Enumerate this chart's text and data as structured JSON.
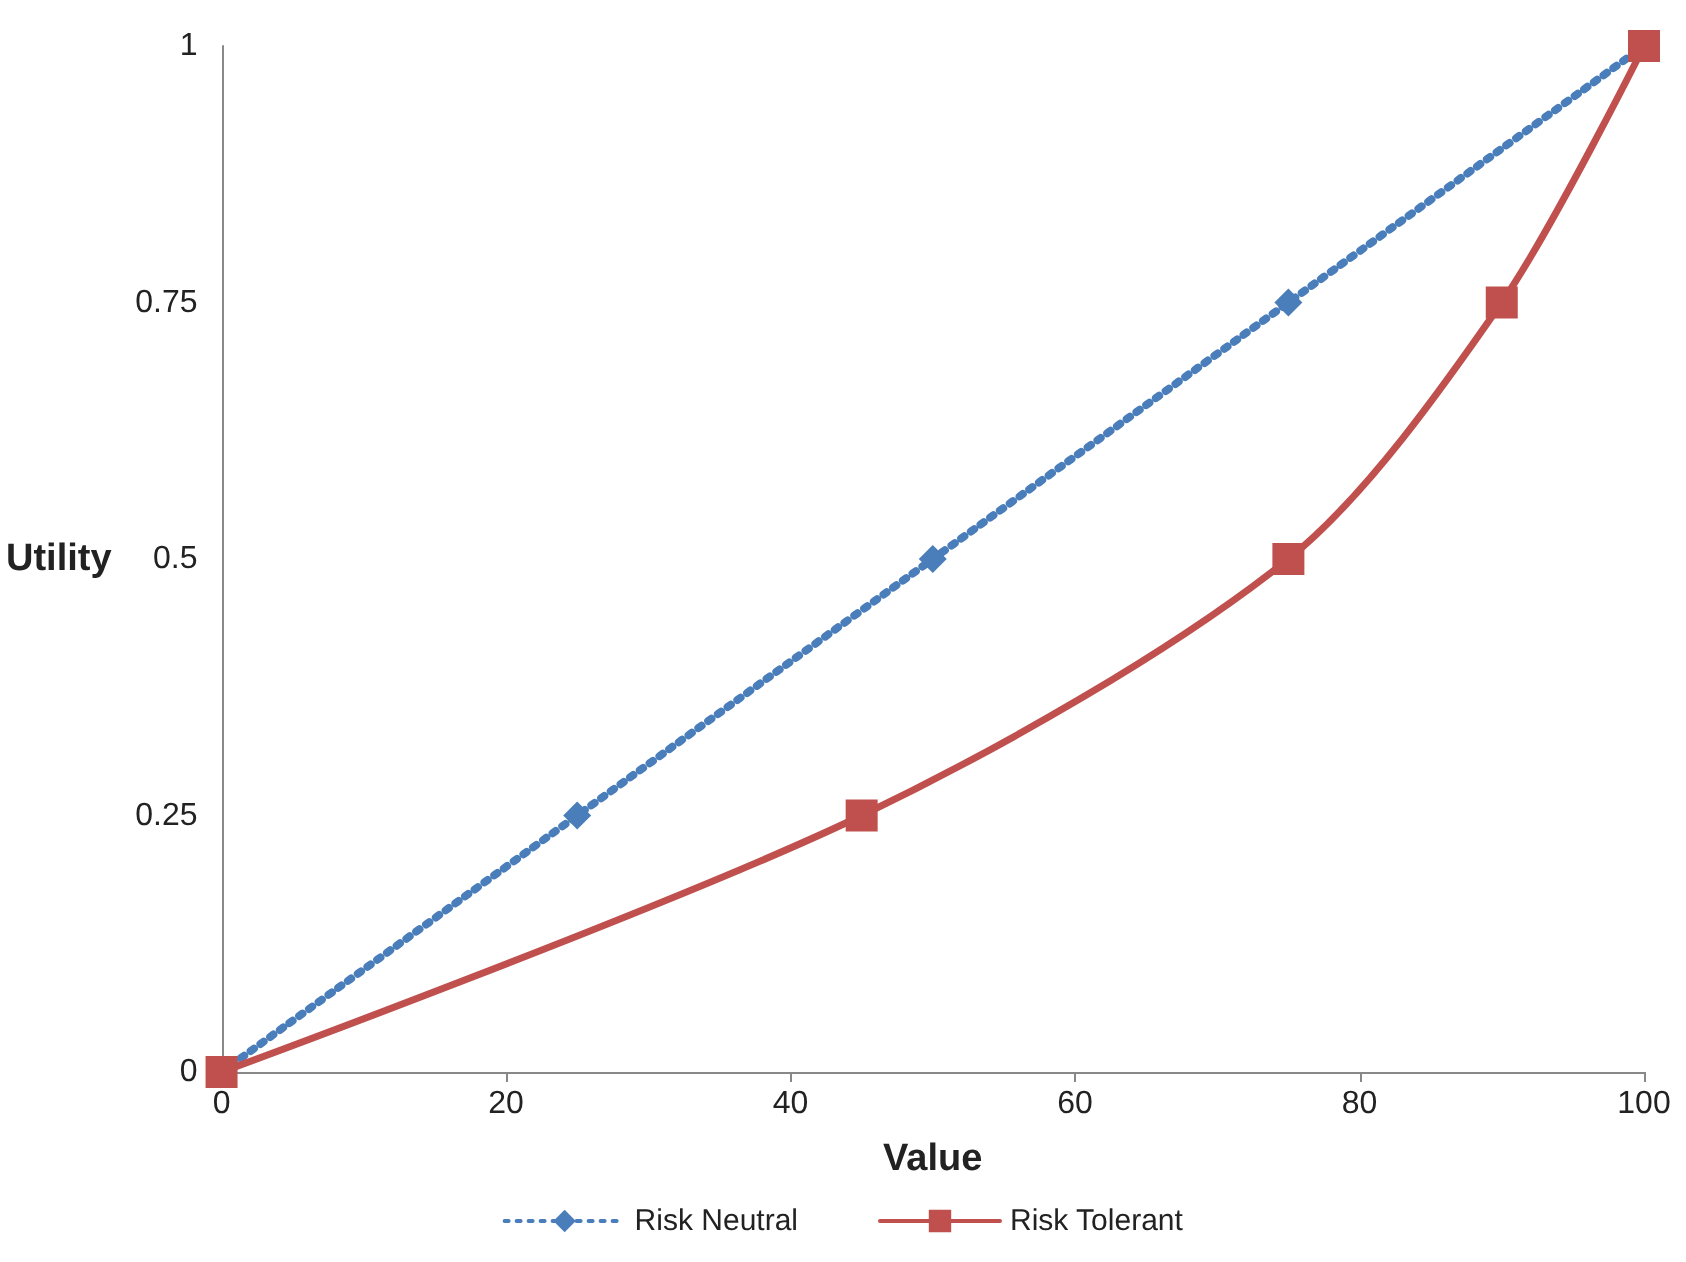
{
  "chart_data": {
    "type": "line",
    "xlabel": "Value",
    "ylabel": "Utility",
    "xlim": [
      0,
      100
    ],
    "xticks": [
      0,
      20,
      40,
      60,
      80,
      100
    ],
    "ylim": [
      0,
      1
    ],
    "yticks": [
      0,
      0.25,
      0.5,
      0.75,
      1
    ],
    "grid": false,
    "legend": "bottom",
    "series": [
      {
        "name": "Risk Neutral",
        "color": "#4a7ebb",
        "marker": "diamond",
        "line_style": "dotted",
        "x": [
          0,
          25,
          50,
          75,
          100
        ],
        "values": [
          0,
          0.25,
          0.5,
          0.75,
          1
        ]
      },
      {
        "name": "Risk Tolerant",
        "color": "#c0504d",
        "marker": "square",
        "line_style": "solid",
        "x": [
          0,
          45,
          75,
          90,
          100
        ],
        "values": [
          0,
          0.25,
          0.5,
          0.75,
          1
        ]
      }
    ]
  }
}
